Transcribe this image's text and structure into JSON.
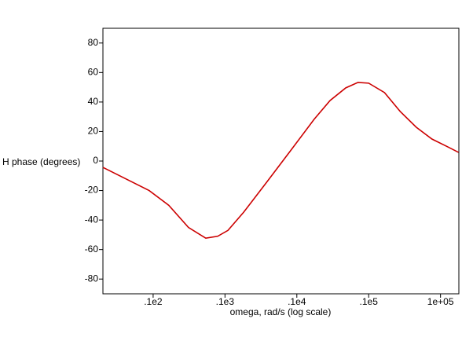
{
  "chart_data": {
    "type": "line",
    "ylabel": "H phase (degrees)",
    "xlabel": "omega, rad/s (log scale)",
    "xscale": "log",
    "x": [
      2,
      8.8,
      16.5,
      31,
      54,
      79,
      110,
      182,
      380,
      815,
      1740,
      2900,
      4800,
      7100,
      10000,
      16600,
      27500,
      46000,
      76000,
      126000,
      178000
    ],
    "series": [
      {
        "name": "H phase",
        "color": "#cc0000",
        "values": [
          -4.3,
          -20,
          -30,
          -45,
          -52.3,
          -51,
          -47,
          -34.7,
          -14.4,
          6.9,
          28.3,
          41,
          49.6,
          53.3,
          52.8,
          46.4,
          33.6,
          22.9,
          14.9,
          9.6,
          5.9
        ]
      }
    ],
    "xlim": [
      2,
      180000
    ],
    "xticks": [
      {
        "value": 10,
        "label": ".1e2"
      },
      {
        "value": 100,
        "label": ".1e3"
      },
      {
        "value": 1000,
        "label": ".1e4"
      },
      {
        "value": 10000,
        "label": ".1e5"
      },
      {
        "value": 100000,
        "label": "1e+05"
      }
    ],
    "ylim": [
      -90,
      90
    ],
    "yticks": [
      -80,
      -60,
      -40,
      -20,
      0,
      20,
      40,
      60,
      80
    ]
  }
}
